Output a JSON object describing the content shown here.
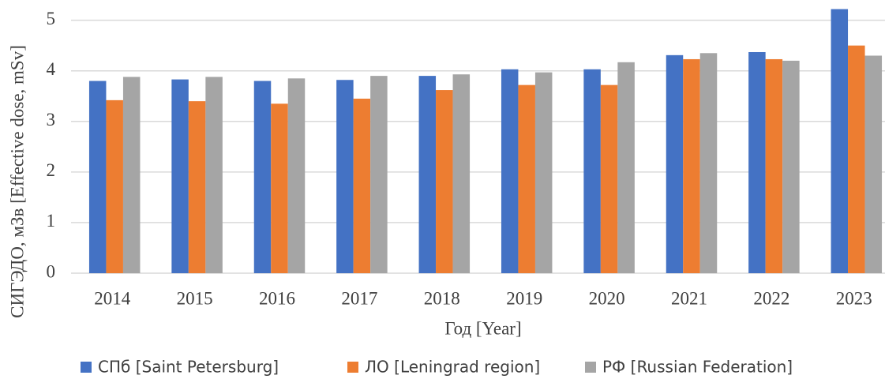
{
  "chart_data": {
    "type": "bar",
    "ylabel": "СИГЭДО, мЗв [Effective dose, mSv]",
    "xlabel": "Год [Year]",
    "categories": [
      "2014",
      "2015",
      "2016",
      "2017",
      "2018",
      "2019",
      "2020",
      "2021",
      "2022",
      "2023"
    ],
    "series": [
      {
        "name": "СПб [Saint Petersburg]",
        "color": "#4472c4",
        "values": [
          3.8,
          3.83,
          3.8,
          3.82,
          3.9,
          4.03,
          4.03,
          4.31,
          4.37,
          5.22
        ]
      },
      {
        "name": "ЛО [Leningrad region]",
        "color": "#ed7d31",
        "values": [
          3.42,
          3.4,
          3.35,
          3.45,
          3.62,
          3.72,
          3.72,
          4.23,
          4.23,
          4.5
        ]
      },
      {
        "name": "РФ [Russian Federation]",
        "color": "#a5a5a5",
        "values": [
          3.88,
          3.88,
          3.85,
          3.9,
          3.93,
          3.97,
          4.17,
          4.35,
          4.2,
          4.3
        ]
      }
    ],
    "ylim": [
      0,
      5.4
    ],
    "yticks": [
      0,
      1,
      2,
      3,
      4,
      5
    ],
    "grid": true,
    "legend": "bottom"
  }
}
